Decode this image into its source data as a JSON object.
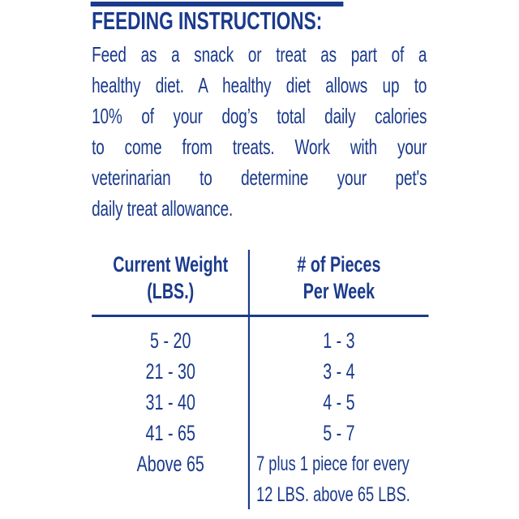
{
  "colors": {
    "ink": "#1a3a8c",
    "background": "#ffffff"
  },
  "heading": {
    "text": "FEEDING INSTRUCTIONS:"
  },
  "body": {
    "lines": [
      "Feed as a snack or treat as part of a",
      "healthy diet. A healthy diet allows up to",
      "10% of your dog’s total daily calories",
      "to come from treats. Work with your",
      "veterinarian to determine your pet's",
      "daily treat allowance."
    ]
  },
  "table": {
    "col1_header": {
      "line1": "Current Weight",
      "line2": "(LBS.)"
    },
    "col2_header": {
      "line1": "# of Pieces",
      "line2": "Per Week"
    },
    "rows": [
      {
        "weight": "5 - 20",
        "pieces": "1 - 3"
      },
      {
        "weight": "21 - 30",
        "pieces": "3 - 4"
      },
      {
        "weight": "31 - 40",
        "pieces": "4 - 5"
      },
      {
        "weight": "41 - 65",
        "pieces": "5 - 7"
      },
      {
        "weight": "Above 65",
        "pieces": "7 plus 1 piece for every\n12 LBS. above 65 LBS."
      }
    ]
  }
}
